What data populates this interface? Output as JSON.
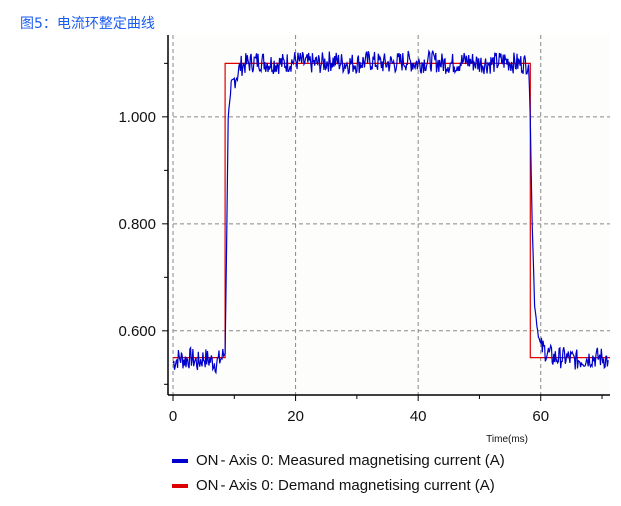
{
  "caption": "图5：电流环整定曲线",
  "chart_data": {
    "type": "line",
    "title": "",
    "xlabel": "Time(ms)",
    "ylabel": "",
    "xlim": [
      0,
      71.3
    ],
    "ylim": [
      0.48,
      1.153
    ],
    "grid": true,
    "legend_placement": "bottom-left",
    "x_ticks": [
      0,
      20,
      40,
      60
    ],
    "x_tick_labels": [
      "0",
      "20",
      "40",
      "60"
    ],
    "y_ticks": [
      0.6,
      0.8,
      1.0
    ],
    "y_tick_labels": [
      "0.600",
      "0.800",
      "1.000"
    ],
    "series": [
      {
        "name": "ON  - Axis 0: Measured magnetising current (A)",
        "color": "#0000cc",
        "x": [
          0,
          1,
          2,
          3,
          4,
          5,
          6,
          7,
          8,
          8.5,
          8.8,
          9,
          9.5,
          10,
          10.5,
          11,
          12,
          14,
          16,
          18,
          20,
          22,
          24,
          26,
          28,
          30,
          32,
          34,
          36,
          38,
          40,
          42,
          44,
          46,
          48,
          50,
          52,
          54,
          56,
          57,
          58,
          58.3,
          58.6,
          59,
          59.5,
          60,
          61,
          62,
          64,
          66,
          68,
          70,
          71
        ],
        "y": [
          0.54,
          0.55,
          0.545,
          0.55,
          0.54,
          0.55,
          0.545,
          0.54,
          0.55,
          0.56,
          0.8,
          1.0,
          1.05,
          1.07,
          1.08,
          1.095,
          1.1,
          1.105,
          1.1,
          1.1,
          1.105,
          1.1,
          1.1,
          1.105,
          1.1,
          1.1,
          1.105,
          1.1,
          1.1,
          1.105,
          1.1,
          1.105,
          1.1,
          1.1,
          1.105,
          1.1,
          1.1,
          1.105,
          1.1,
          1.1,
          1.1,
          1.0,
          0.8,
          0.65,
          0.6,
          0.57,
          0.56,
          0.55,
          0.55,
          0.545,
          0.55,
          0.55,
          0.545
        ]
      },
      {
        "name": "ON  - Axis 0: Demand magnetising current (A)",
        "color": "#dd0000",
        "x": [
          0,
          8.5,
          8.5,
          58.3,
          58.3,
          71.3
        ],
        "y": [
          0.55,
          0.55,
          1.1,
          1.1,
          0.55,
          0.55
        ]
      }
    ]
  },
  "legend": [
    {
      "state": "ON",
      "text": " - Axis 0: Measured magnetising current (A)",
      "color": "#0000cc"
    },
    {
      "state": "ON",
      "text": " - Axis 0: Demand magnetising current (A)",
      "color": "#dd0000"
    }
  ]
}
